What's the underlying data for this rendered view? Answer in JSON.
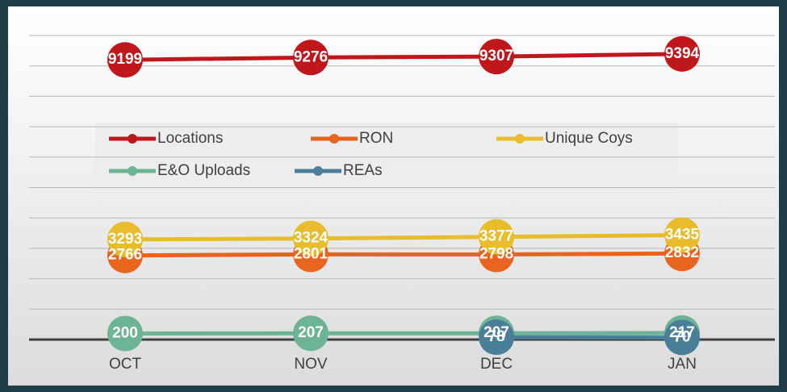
{
  "chart_data": {
    "type": "line",
    "categories": [
      "OCT",
      "NOV",
      "DEC",
      "JAN"
    ],
    "series": [
      {
        "name": "Locations",
        "color": "#c0171c",
        "values": [
          9199,
          9276,
          9307,
          9394
        ]
      },
      {
        "name": "RON",
        "color": "#e8641f",
        "values": [
          2766,
          2801,
          2798,
          2832
        ]
      },
      {
        "name": "Unique Coys",
        "color": "#e8bc2a",
        "values": [
          3293,
          3324,
          3377,
          3435
        ]
      },
      {
        "name": "E&O Uploads",
        "color": "#6db396",
        "values": [
          200,
          207,
          207,
          217
        ]
      },
      {
        "name": "REAs",
        "color": "#4a7f99",
        "values": [
          null,
          null,
          78,
          70
        ]
      }
    ],
    "ylim": [
      0,
      10000
    ],
    "yticks": [
      0,
      1000,
      2000,
      3000,
      4000,
      5000,
      6000,
      7000,
      8000,
      9000,
      10000
    ],
    "grid": true
  }
}
